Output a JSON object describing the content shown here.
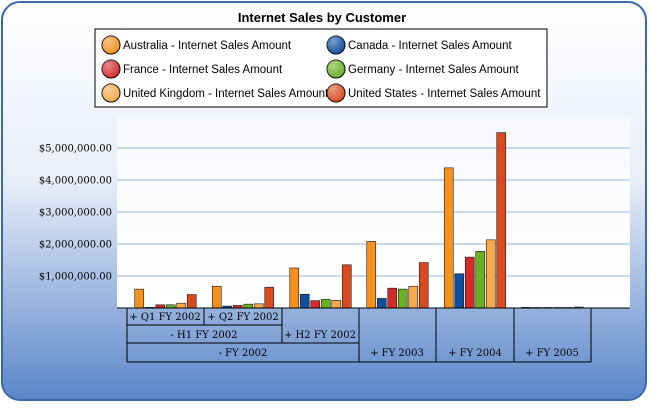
{
  "chart_data": {
    "type": "bar",
    "title": "Internet Sales by Customer",
    "xlabel": "",
    "ylabel": "",
    "ylim": [
      0,
      6000000
    ],
    "yticks": [
      "$1,000,000.00",
      "$2,000,000.00",
      "$3,000,000.00",
      "$4,000,000.00",
      "$5,000,000.00"
    ],
    "grid": true,
    "legend_position": "top",
    "categories": [
      "+ Q1 FY 2002",
      "+ Q2 FY 2002",
      "+ H2 FY 2002",
      "+ FY 2003",
      "+ FY 2004",
      "+ FY 2005"
    ],
    "category_groups": [
      {
        "label": "- H1 FY 2002",
        "children": [
          "+ Q1 FY 2002",
          "+ Q2 FY 2002"
        ]
      },
      {
        "label": "- FY 2002",
        "children": [
          "+ Q1 FY 2002",
          "+ Q2 FY 2002",
          "+ H2 FY 2002"
        ]
      }
    ],
    "series": [
      {
        "name": "Australia - Internet Sales Amount",
        "color": "#f5921e",
        "values": [
          590000,
          680000,
          1250000,
          2080000,
          4380000,
          20000
        ]
      },
      {
        "name": "Canada - Internet Sales Amount",
        "color": "#0d4f9c",
        "values": [
          20000,
          60000,
          430000,
          300000,
          1070000,
          2000
        ]
      },
      {
        "name": "France - Internet Sales Amount",
        "color": "#d42a2a",
        "values": [
          100000,
          80000,
          230000,
          620000,
          1590000,
          5000
        ]
      },
      {
        "name": "Germany - Internet Sales Amount",
        "color": "#6ab023",
        "values": [
          100000,
          120000,
          270000,
          590000,
          1770000,
          5000
        ]
      },
      {
        "name": "United Kingdom - Internet Sales Amount",
        "color": "#f7a94b",
        "values": [
          150000,
          130000,
          240000,
          680000,
          2130000,
          5000
        ]
      },
      {
        "name": "United States - Internet Sales Amount",
        "color": "#d94a1e",
        "values": [
          420000,
          650000,
          1350000,
          1420000,
          5480000,
          30000
        ]
      }
    ]
  }
}
